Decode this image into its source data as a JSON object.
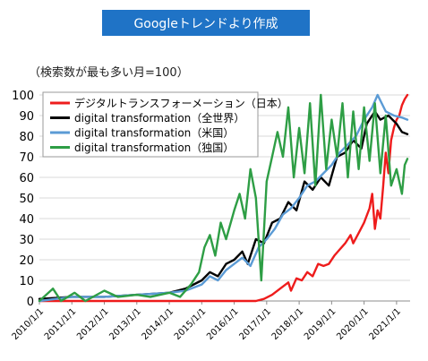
{
  "banner": {
    "label": "Googleトレンドより作成",
    "color": "#1f73c6"
  },
  "chart_data": {
    "type": "line",
    "subtitle": "（検索数が最も多い月=100）",
    "ylim": [
      0,
      100
    ],
    "yticks": [
      0,
      10,
      20,
      30,
      40,
      50,
      60,
      70,
      80,
      90,
      100
    ],
    "xlim": [
      "2010/1/1",
      "2021/6/1"
    ],
    "xticks": [
      "2010/1/1",
      "2011/1/1",
      "2012/1/1",
      "2013/1/1",
      "2014/1/1",
      "2015/1/1",
      "2016/1/1",
      "2017/1/1",
      "2018/1/1",
      "2019/1/1",
      "2020/1/1",
      "2021/1/1"
    ],
    "grid": "horizontal",
    "legend": "top-left",
    "series": [
      {
        "name": "デジタルトランスフォーメーション（日本）",
        "color": "#ee1c1c",
        "points": [
          [
            "2010/1/1",
            0
          ],
          [
            "2016/9/1",
            0
          ],
          [
            "2016/12/1",
            1
          ],
          [
            "2017/3/1",
            3
          ],
          [
            "2017/6/1",
            6
          ],
          [
            "2017/9/1",
            9
          ],
          [
            "2017/10/1",
            5
          ],
          [
            "2017/12/1",
            11
          ],
          [
            "2018/2/1",
            10
          ],
          [
            "2018/4/1",
            14
          ],
          [
            "2018/6/1",
            12
          ],
          [
            "2018/8/1",
            18
          ],
          [
            "2018/10/1",
            17
          ],
          [
            "2018/12/1",
            18
          ],
          [
            "2019/2/1",
            22
          ],
          [
            "2019/4/1",
            25
          ],
          [
            "2019/6/1",
            28
          ],
          [
            "2019/8/1",
            32
          ],
          [
            "2019/9/1",
            28
          ],
          [
            "2019/11/1",
            33
          ],
          [
            "2020/1/1",
            38
          ],
          [
            "2020/3/1",
            45
          ],
          [
            "2020/4/1",
            52
          ],
          [
            "2020/5/1",
            35
          ],
          [
            "2020/6/1",
            44
          ],
          [
            "2020/7/1",
            40
          ],
          [
            "2020/8/1",
            55
          ],
          [
            "2020/9/1",
            72
          ],
          [
            "2020/10/1",
            62
          ],
          [
            "2020/11/1",
            78
          ],
          [
            "2020/12/1",
            84
          ],
          [
            "2021/1/1",
            88
          ],
          [
            "2021/2/1",
            90
          ],
          [
            "2021/3/1",
            95
          ],
          [
            "2021/4/1",
            98
          ],
          [
            "2021/5/1",
            100
          ]
        ]
      },
      {
        "name": "digital transformation（全世界）",
        "color": "#000000",
        "points": [
          [
            "2010/1/1",
            1
          ],
          [
            "2011/1/1",
            2
          ],
          [
            "2012/1/1",
            2
          ],
          [
            "2013/1/1",
            3
          ],
          [
            "2014/1/1",
            4
          ],
          [
            "2014/7/1",
            6
          ],
          [
            "2015/1/1",
            10
          ],
          [
            "2015/4/1",
            14
          ],
          [
            "2015/7/1",
            12
          ],
          [
            "2015/10/1",
            18
          ],
          [
            "2016/1/1",
            20
          ],
          [
            "2016/4/1",
            24
          ],
          [
            "2016/6/1",
            18
          ],
          [
            "2016/9/1",
            30
          ],
          [
            "2016/12/1",
            28
          ],
          [
            "2017/3/1",
            38
          ],
          [
            "2017/6/1",
            40
          ],
          [
            "2017/9/1",
            48
          ],
          [
            "2017/12/1",
            44
          ],
          [
            "2018/3/1",
            58
          ],
          [
            "2018/6/1",
            54
          ],
          [
            "2018/9/1",
            60
          ],
          [
            "2018/12/1",
            56
          ],
          [
            "2019/3/1",
            70
          ],
          [
            "2019/6/1",
            72
          ],
          [
            "2019/9/1",
            78
          ],
          [
            "2019/12/1",
            74
          ],
          [
            "2020/2/1",
            86
          ],
          [
            "2020/5/1",
            92
          ],
          [
            "2020/7/1",
            88
          ],
          [
            "2020/10/1",
            90
          ],
          [
            "2021/1/1",
            86
          ],
          [
            "2021/3/1",
            82
          ],
          [
            "2021/5/1",
            81
          ]
        ]
      },
      {
        "name": "digital transformation（米国）",
        "color": "#5b9bd5",
        "points": [
          [
            "2010/1/1",
            0
          ],
          [
            "2011/1/1",
            2
          ],
          [
            "2012/1/1",
            2
          ],
          [
            "2013/1/1",
            3
          ],
          [
            "2014/1/1",
            4
          ],
          [
            "2014/7/1",
            5
          ],
          [
            "2015/1/1",
            8
          ],
          [
            "2015/4/1",
            12
          ],
          [
            "2015/7/1",
            10
          ],
          [
            "2015/10/1",
            15
          ],
          [
            "2016/1/1",
            18
          ],
          [
            "2016/4/1",
            21
          ],
          [
            "2016/7/1",
            17
          ],
          [
            "2016/10/1",
            26
          ],
          [
            "2017/1/1",
            30
          ],
          [
            "2017/4/1",
            35
          ],
          [
            "2017/7/1",
            42
          ],
          [
            "2017/10/1",
            45
          ],
          [
            "2018/1/1",
            50
          ],
          [
            "2018/4/1",
            56
          ],
          [
            "2018/7/1",
            58
          ],
          [
            "2018/10/1",
            62
          ],
          [
            "2019/1/1",
            66
          ],
          [
            "2019/4/1",
            72
          ],
          [
            "2019/7/1",
            76
          ],
          [
            "2019/10/1",
            80
          ],
          [
            "2020/1/1",
            88
          ],
          [
            "2020/4/1",
            94
          ],
          [
            "2020/6/1",
            100
          ],
          [
            "2020/9/1",
            92
          ],
          [
            "2020/12/1",
            90
          ],
          [
            "2021/3/1",
            89
          ],
          [
            "2021/5/1",
            88
          ]
        ]
      },
      {
        "name": "digital transformation（独国）",
        "color": "#2e9e45",
        "points": [
          [
            "2010/1/1",
            0
          ],
          [
            "2010/6/1",
            6
          ],
          [
            "2010/9/1",
            0
          ],
          [
            "2011/2/1",
            4
          ],
          [
            "2011/6/1",
            0
          ],
          [
            "2012/1/1",
            5
          ],
          [
            "2012/6/1",
            2
          ],
          [
            "2013/1/1",
            3
          ],
          [
            "2013/6/1",
            2
          ],
          [
            "2014/1/1",
            4
          ],
          [
            "2014/5/1",
            2
          ],
          [
            "2014/9/1",
            8
          ],
          [
            "2014/12/1",
            14
          ],
          [
            "2015/2/1",
            26
          ],
          [
            "2015/4/1",
            32
          ],
          [
            "2015/6/1",
            22
          ],
          [
            "2015/8/1",
            38
          ],
          [
            "2015/10/1",
            30
          ],
          [
            "2016/1/1",
            44
          ],
          [
            "2016/3/1",
            52
          ],
          [
            "2016/5/1",
            40
          ],
          [
            "2016/7/1",
            64
          ],
          [
            "2016/9/1",
            50
          ],
          [
            "2016/11/1",
            10
          ],
          [
            "2017/1/1",
            58
          ],
          [
            "2017/3/1",
            70
          ],
          [
            "2017/5/1",
            82
          ],
          [
            "2017/7/1",
            70
          ],
          [
            "2017/9/1",
            94
          ],
          [
            "2017/11/1",
            60
          ],
          [
            "2018/1/1",
            84
          ],
          [
            "2018/3/1",
            62
          ],
          [
            "2018/5/1",
            96
          ],
          [
            "2018/7/1",
            56
          ],
          [
            "2018/9/1",
            100
          ],
          [
            "2018/11/1",
            64
          ],
          [
            "2019/1/1",
            88
          ],
          [
            "2019/3/1",
            70
          ],
          [
            "2019/5/1",
            96
          ],
          [
            "2019/7/1",
            60
          ],
          [
            "2019/9/1",
            92
          ],
          [
            "2019/11/1",
            64
          ],
          [
            "2020/1/1",
            94
          ],
          [
            "2020/3/1",
            68
          ],
          [
            "2020/5/1",
            96
          ],
          [
            "2020/7/1",
            62
          ],
          [
            "2020/9/1",
            90
          ],
          [
            "2020/11/1",
            56
          ],
          [
            "2021/1/1",
            64
          ],
          [
            "2021/3/1",
            52
          ],
          [
            "2021/4/1",
            66
          ],
          [
            "2021/5/1",
            69
          ]
        ]
      }
    ]
  }
}
